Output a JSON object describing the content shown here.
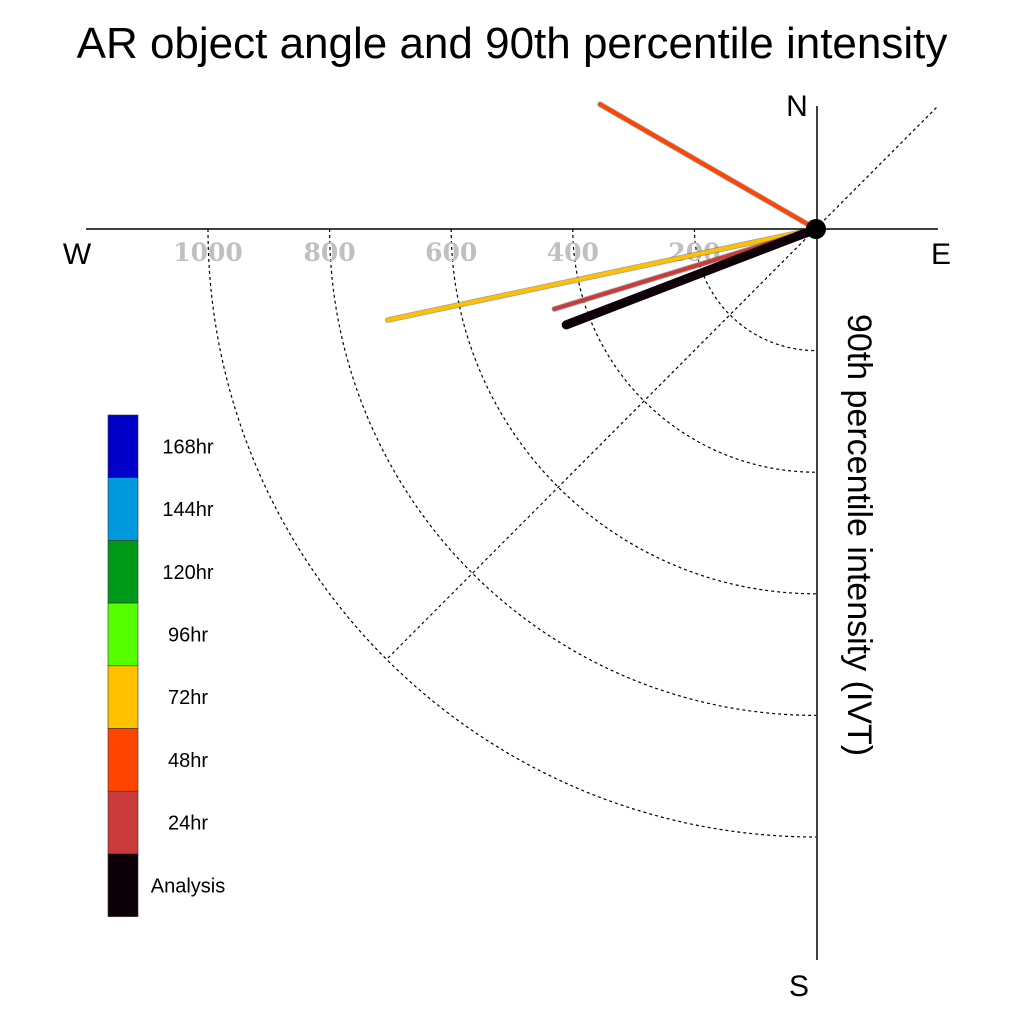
{
  "chart_data": {
    "type": "polar-vector",
    "title": "AR object angle and 90th percentile intensity",
    "radial_axis_label": "90th percentile intensity (IVT)",
    "compass": {
      "north": "N",
      "south": "S",
      "east": "E",
      "west": "W"
    },
    "rings": [
      200,
      400,
      600,
      800,
      1000
    ],
    "ring_labels": [
      "200",
      "400",
      "600",
      "800",
      "1000"
    ],
    "series": [
      {
        "name": "72hr",
        "color": "#ffc000",
        "angle_deg": 192,
        "intensity": 720
      },
      {
        "name": "48hr",
        "color": "#ff4500",
        "angle_deg": 150,
        "intensity": 410
      },
      {
        "name": "24hr",
        "color": "#cc3b3b",
        "angle_deg": 197,
        "intensity": 450
      },
      {
        "name": "Analysis",
        "color": "#0d0008",
        "angle_deg": 201,
        "intensity": 440
      }
    ],
    "legend": [
      {
        "label": "168hr",
        "color": "#0000c8"
      },
      {
        "label": "144hr",
        "color": "#0099dd"
      },
      {
        "label": "120hr",
        "color": "#009a1a"
      },
      {
        "label": "96hr",
        "color": "#55ff00"
      },
      {
        "label": "72hr",
        "color": "#ffc000"
      },
      {
        "label": "48hr",
        "color": "#ff4500"
      },
      {
        "label": "24hr",
        "color": "#cc3b3b"
      },
      {
        "label": "Analysis",
        "color": "#0d0008"
      }
    ]
  }
}
